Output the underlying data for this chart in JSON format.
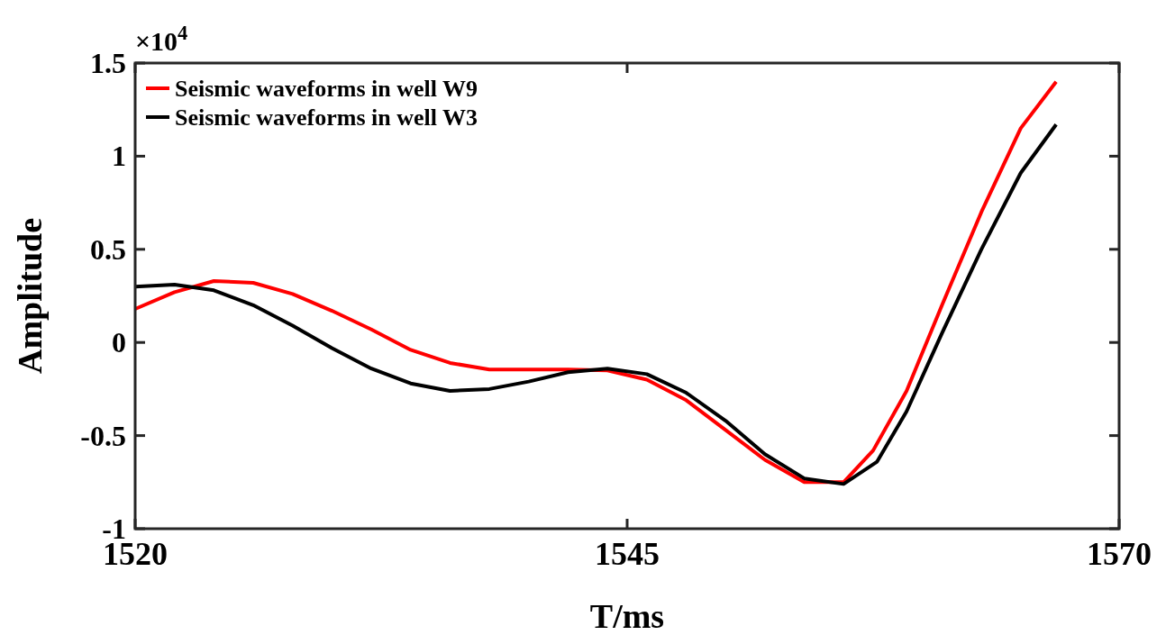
{
  "chart_data": {
    "type": "line",
    "xlabel": "T/ms",
    "ylabel": "Amplitude",
    "annotations": [
      "×10$^{4}$"
    ],
    "xlim": [
      1520,
      1570
    ],
    "xticks": [
      1520,
      1545,
      1570
    ],
    "ylim": [
      -1,
      1.5
    ],
    "yticks": [
      -1,
      -0.5,
      0,
      0.5,
      1,
      1.5
    ],
    "grid": false,
    "legend": "top left",
    "marker": "none",
    "line_style": "solid",
    "series": [
      {
        "name": "Seismic waveforms in well W9",
        "color": "#ff0000",
        "x": [
          1520,
          1522,
          1524,
          1526,
          1528,
          1530,
          1532,
          1534,
          1536,
          1538,
          1540,
          1542,
          1544,
          1546,
          1548,
          1550,
          1552,
          1554,
          1556,
          1557.5,
          1559.2,
          1561,
          1563,
          1565,
          1566.8
        ],
        "values": [
          0.18,
          0.27,
          0.33,
          0.32,
          0.26,
          0.17,
          0.07,
          -0.04,
          -0.11,
          -0.145,
          -0.145,
          -0.145,
          -0.15,
          -0.2,
          -0.31,
          -0.47,
          -0.63,
          -0.75,
          -0.75,
          -0.58,
          -0.26,
          0.2,
          0.7,
          1.15,
          1.4
        ]
      },
      {
        "name": "Seismic waveforms in well W3",
        "color": "#000000",
        "x": [
          1520,
          1522,
          1524,
          1526,
          1528,
          1530,
          1532,
          1534,
          1536,
          1538,
          1540,
          1542,
          1544,
          1546,
          1548,
          1550,
          1552,
          1554,
          1556,
          1557.7,
          1559.2,
          1561,
          1563,
          1565,
          1566.8
        ],
        "values": [
          0.3,
          0.31,
          0.28,
          0.2,
          0.09,
          -0.03,
          -0.14,
          -0.22,
          -0.26,
          -0.25,
          -0.21,
          -0.16,
          -0.14,
          -0.17,
          -0.27,
          -0.42,
          -0.6,
          -0.73,
          -0.76,
          -0.64,
          -0.37,
          0.05,
          0.5,
          0.91,
          1.17
        ]
      }
    ]
  }
}
